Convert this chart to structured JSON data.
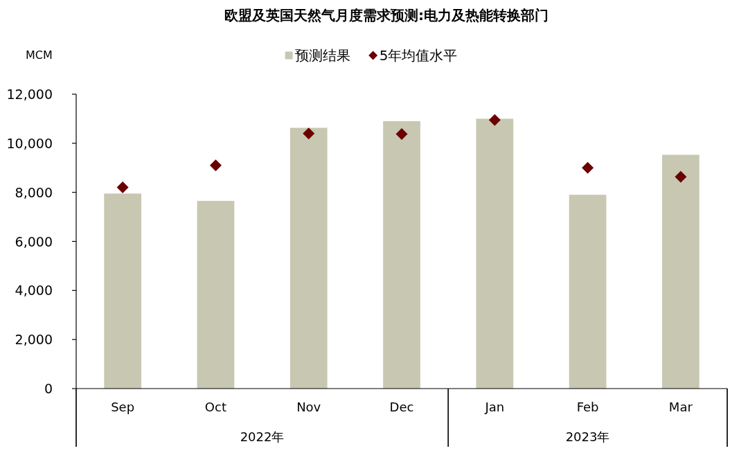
{
  "chart_data": {
    "type": "bar",
    "title": "欧盟及英国天然气月度需求预测:电力及热能转换部门",
    "ylabel": "MCM",
    "categories": [
      "Sep",
      "Oct",
      "Nov",
      "Dec",
      "Jan",
      "Feb",
      "Mar"
    ],
    "series": [
      {
        "name": "预测结果",
        "color": "#c8c7b2",
        "values": [
          7950,
          7650,
          10630,
          10900,
          11000,
          7900,
          9530
        ]
      },
      {
        "name": "5年均值水平",
        "type": "scatter",
        "color": "#6b0000",
        "marker": "diamond",
        "values": [
          8200,
          9100,
          10400,
          10380,
          10950,
          9000,
          8630
        ]
      }
    ],
    "ylim": [
      0,
      12000
    ],
    "yticks": [
      0,
      {
        "value": 2000,
        "label": "2,000"
      },
      {
        "value": 4000,
        "label": "4,000"
      },
      {
        "value": 6000,
        "label": "6,000"
      },
      {
        "value": 8000,
        "label": "8,000"
      },
      {
        "value": 10000,
        "label": "10,000"
      },
      {
        "value": 12000,
        "label": "12,000"
      }
    ],
    "legend": "top",
    "annotations": [
      "2022年",
      "2023年"
    ]
  }
}
